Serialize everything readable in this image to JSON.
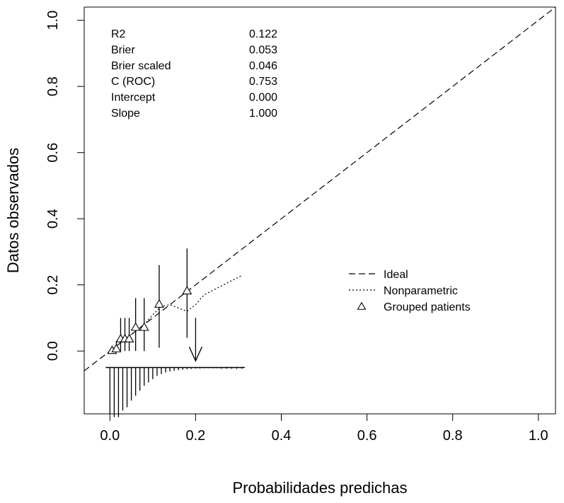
{
  "chart_data": {
    "type": "line",
    "title": "",
    "xlabel": "Probabilidades predichas",
    "ylabel": "Datos observados",
    "xlim": [
      -0.06,
      1.04
    ],
    "ylim": [
      -0.19,
      1.04
    ],
    "xticks": [
      0.0,
      0.2,
      0.4,
      0.6,
      0.8,
      1.0
    ],
    "xtick_labels": [
      "0.0",
      "0.2",
      "0.4",
      "0.6",
      "0.8",
      "1.0"
    ],
    "yticks": [
      0.0,
      0.2,
      0.4,
      0.6,
      0.8,
      1.0
    ],
    "ytick_labels": [
      "0.0",
      "0.2",
      "0.4",
      "0.6",
      "0.8",
      "1.0"
    ],
    "stats": [
      {
        "label": "R2",
        "value": "0.122"
      },
      {
        "label": "Brier",
        "value": "0.053"
      },
      {
        "label": "Brier scaled",
        "value": "0.046"
      },
      {
        "label": "C (ROC)",
        "value": "0.753"
      },
      {
        "label": "Intercept",
        "value": "0.000"
      },
      {
        "label": "Slope",
        "value": "1.000"
      }
    ],
    "legend": {
      "position": "right",
      "entries": [
        {
          "label": "Ideal",
          "style": "dashed"
        },
        {
          "label": "Nonparametric",
          "style": "dotted"
        },
        {
          "label": "Grouped patients",
          "style": "triangle"
        }
      ]
    },
    "series": [
      {
        "name": "Ideal",
        "style": "dashed",
        "points": [
          [
            -0.06,
            -0.06
          ],
          [
            1.04,
            1.04
          ]
        ]
      },
      {
        "name": "Nonparametric",
        "style": "dotted",
        "points": [
          [
            0.0,
            0.0
          ],
          [
            0.02,
            0.02
          ],
          [
            0.04,
            0.04
          ],
          [
            0.06,
            0.06
          ],
          [
            0.08,
            0.08
          ],
          [
            0.1,
            0.11
          ],
          [
            0.12,
            0.135
          ],
          [
            0.14,
            0.14
          ],
          [
            0.16,
            0.13
          ],
          [
            0.18,
            0.12
          ],
          [
            0.2,
            0.14
          ],
          [
            0.22,
            0.17
          ],
          [
            0.25,
            0.19
          ],
          [
            0.28,
            0.21
          ],
          [
            0.31,
            0.23
          ]
        ]
      }
    ],
    "grouped_patients": [
      {
        "x": 0.005,
        "y": 0.0,
        "lo": 0.0,
        "hi": 0.0
      },
      {
        "x": 0.015,
        "y": 0.005,
        "lo": 0.0,
        "hi": 0.03
      },
      {
        "x": 0.025,
        "y": 0.035,
        "lo": 0.0,
        "hi": 0.1
      },
      {
        "x": 0.035,
        "y": 0.035,
        "lo": 0.0,
        "hi": 0.1
      },
      {
        "x": 0.045,
        "y": 0.035,
        "lo": 0.0,
        "hi": 0.1
      },
      {
        "x": 0.06,
        "y": 0.07,
        "lo": 0.0,
        "hi": 0.16
      },
      {
        "x": 0.08,
        "y": 0.07,
        "lo": 0.0,
        "hi": 0.16
      },
      {
        "x": 0.115,
        "y": 0.14,
        "lo": 0.01,
        "hi": 0.26
      },
      {
        "x": 0.18,
        "y": 0.18,
        "lo": 0.04,
        "hi": 0.31
      }
    ],
    "arrow": {
      "x": 0.2,
      "y_from": 0.1,
      "y_to": -0.03
    },
    "spike_baseline_y": -0.05,
    "spikes": [
      {
        "x": 0.0,
        "h": 0.14
      },
      {
        "x": 0.01,
        "h": 0.15
      },
      {
        "x": 0.02,
        "h": 0.15
      },
      {
        "x": 0.03,
        "h": 0.13
      },
      {
        "x": 0.04,
        "h": 0.12
      },
      {
        "x": 0.05,
        "h": 0.1
      },
      {
        "x": 0.06,
        "h": 0.085
      },
      {
        "x": 0.07,
        "h": 0.07
      },
      {
        "x": 0.08,
        "h": 0.055
      },
      {
        "x": 0.09,
        "h": 0.045
      },
      {
        "x": 0.1,
        "h": 0.035
      },
      {
        "x": 0.11,
        "h": 0.025
      },
      {
        "x": 0.12,
        "h": 0.02
      },
      {
        "x": 0.13,
        "h": 0.015
      },
      {
        "x": 0.14,
        "h": 0.012
      },
      {
        "x": 0.15,
        "h": 0.01
      },
      {
        "x": 0.16,
        "h": 0.008
      },
      {
        "x": 0.17,
        "h": 0.006
      },
      {
        "x": 0.18,
        "h": 0.005
      },
      {
        "x": 0.19,
        "h": 0.004
      },
      {
        "x": 0.2,
        "h": 0.003
      },
      {
        "x": 0.21,
        "h": 0.003
      },
      {
        "x": 0.22,
        "h": 0.002
      },
      {
        "x": 0.23,
        "h": 0.002
      },
      {
        "x": 0.24,
        "h": 0.002
      },
      {
        "x": 0.25,
        "h": 0.002
      }
    ],
    "spike_range": [
      0.0,
      0.31
    ],
    "grid": false
  }
}
